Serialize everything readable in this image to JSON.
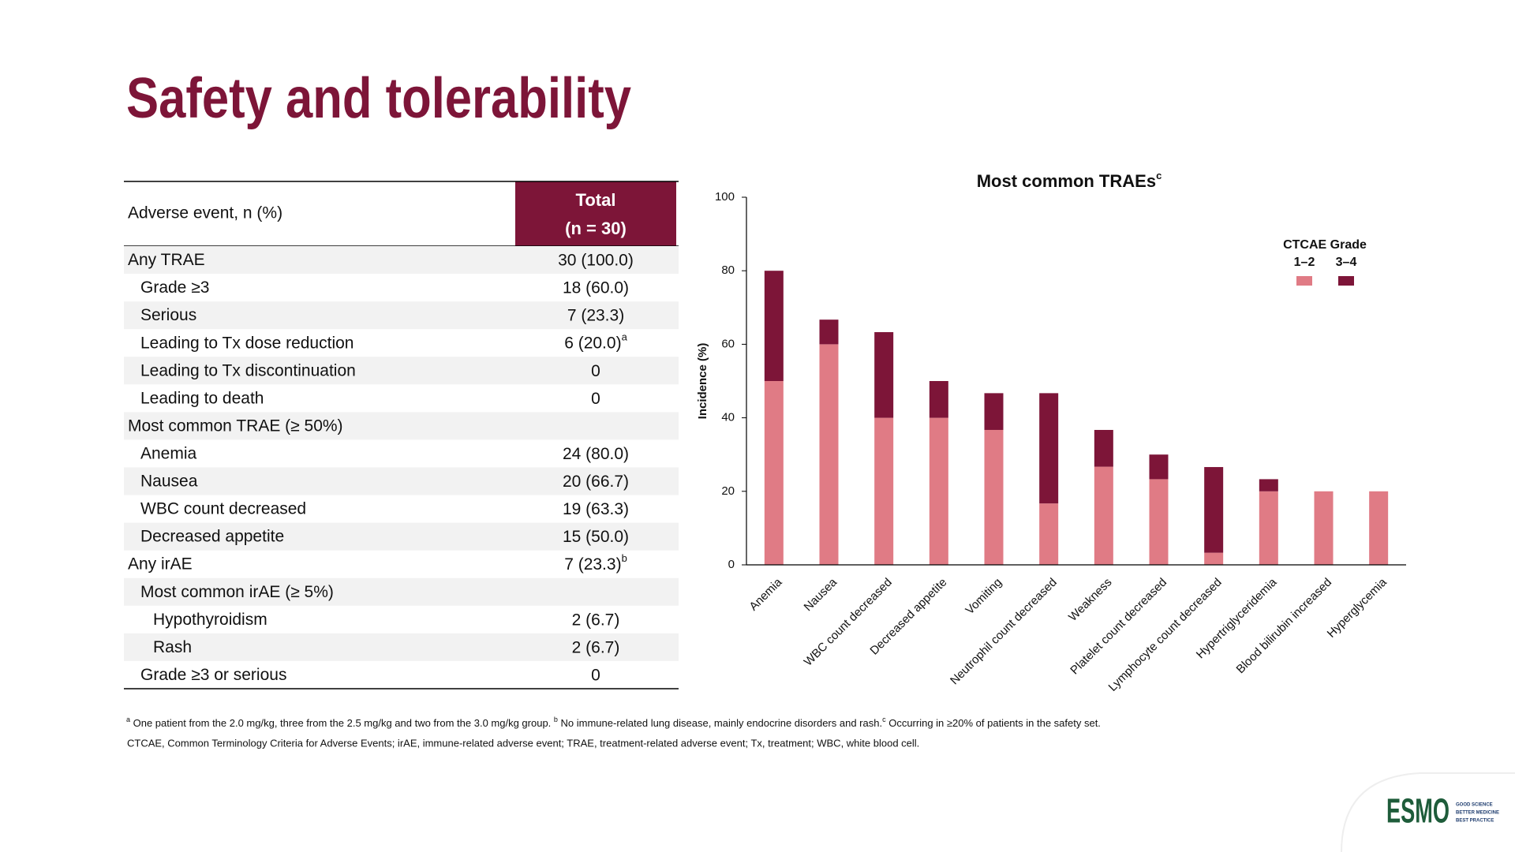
{
  "title": "Safety and tolerability",
  "table": {
    "header": [
      "Adverse event, n (%)",
      "Total",
      "(n = 30)"
    ],
    "rows": [
      {
        "label": "Any TRAE",
        "value": "30 (100.0)"
      },
      {
        "label": "Grade ≥3",
        "value": "18 (60.0)"
      },
      {
        "label": "Serious",
        "value": "7 (23.3)"
      },
      {
        "label": "Leading to Tx dose reduction",
        "value": "6 (20.0)",
        "sup": "a"
      },
      {
        "label": "Leading to Tx discontinuation",
        "value": "0"
      },
      {
        "label": "Leading to death",
        "value": "0"
      },
      {
        "label": "Most common TRAE (≥ 50%)",
        "value": null
      },
      {
        "label": "Anemia",
        "value": "24 (80.0)"
      },
      {
        "label": "Nausea",
        "value": "20 (66.7)"
      },
      {
        "label": "WBC count decreased",
        "value": "19 (63.3)"
      },
      {
        "label": "Decreased appetite",
        "value": "15 (50.0)"
      },
      {
        "label": "Any irAE",
        "value": "7 (23.3)",
        "sup": "b"
      },
      {
        "label": "Most common irAE (≥ 5%)",
        "value": null
      },
      {
        "label": "Hypothyroidism",
        "value": "2 (6.7)"
      },
      {
        "label": "Rash",
        "value": "2 (6.7)"
      },
      {
        "label": "Grade ≥3 or serious",
        "value": "0"
      }
    ]
  },
  "chart_data": {
    "type": "stacked_bar",
    "title": "Most common TRAEs",
    "title_sup": "c",
    "y_label": "Incidence (%)",
    "legend_title": "CTCAE Grade",
    "legend": "upper-right",
    "categories": [
      "Anemia",
      "Nausea",
      "WBC count decreased",
      "Decreased appetite",
      "Vomiting",
      "Neutrophil count decreased",
      "Weakness",
      "Platelet count decreased",
      "Lymphocyte count decreased",
      "Hypertriglyceridemia",
      "Blood bilirubin increased",
      "Hyperglycemia"
    ],
    "series": [
      {
        "name": "1–2",
        "color": "#e07b85",
        "values": [
          50,
          60,
          40,
          40,
          36.7,
          16.7,
          26.7,
          23.3,
          3.3,
          20,
          20,
          20
        ]
      },
      {
        "name": "3–4",
        "color": "#7d1538",
        "values": [
          30,
          6.7,
          23.3,
          10,
          10,
          30,
          10,
          6.7,
          23.3,
          3.3,
          0,
          0
        ]
      }
    ],
    "ylim": [
      0,
      100
    ],
    "yticks": [
      0,
      20,
      40,
      60,
      80,
      100
    ],
    "grid": false
  },
  "footnotes": [
    {
      "mark": "a",
      "text": " One patient from the 2.0 mg/kg, three from the 2.5 mg/kg and two from the 3.0 mg/kg group. "
    },
    {
      "mark": "b",
      "text": " No immune-related lung disease, mainly endocrine disorders and rash."
    },
    {
      "mark": "c",
      "text": " Occurring in ≥20% of patients in the safety set."
    }
  ],
  "abbreviations": "CTCAE, Common Terminology Criteria for Adverse Events; irAE, immune-related adverse event; TRAE, treatment-related adverse event; Tx, treatment; WBC, white blood cell.",
  "logo": {
    "name": "ESMO",
    "tagline": [
      "GOOD SCIENCE",
      "BETTER MEDICINE",
      "BEST PRACTICE"
    ]
  }
}
